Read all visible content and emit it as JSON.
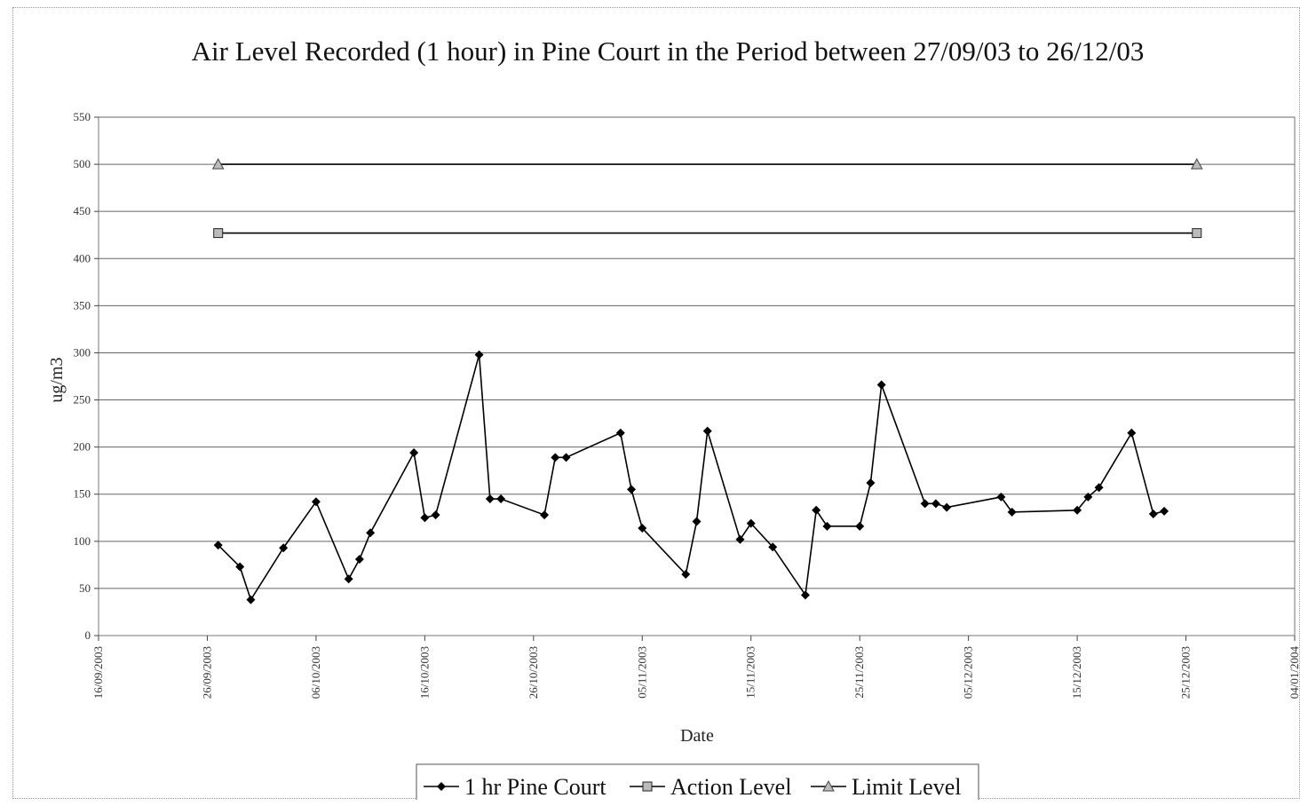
{
  "chart_data": {
    "type": "line",
    "title": "Air Level Recorded (1 hour) in Pine Court in the Period between 27/09/03 to 26/12/03",
    "xlabel": "Date",
    "ylabel": "ug/m3",
    "ylim": [
      0,
      550
    ],
    "yticks": [
      0,
      50,
      100,
      150,
      200,
      250,
      300,
      350,
      400,
      450,
      500,
      550
    ],
    "xlim": [
      "16/09/2003",
      "04/01/2004"
    ],
    "xticks": [
      "16/09/2003",
      "26/09/2003",
      "06/10/2003",
      "16/10/2003",
      "26/10/2003",
      "05/11/2003",
      "15/11/2003",
      "25/11/2003",
      "05/12/2003",
      "15/12/2003",
      "25/12/2003",
      "04/01/2004"
    ],
    "grid": true,
    "legend_position": "bottom",
    "series": [
      {
        "name": "1 hr Pine Court",
        "marker": "diamond",
        "color": "#000000",
        "points": [
          [
            "27/09/2003",
            96
          ],
          [
            "29/09/2003",
            73
          ],
          [
            "30/09/2003",
            38
          ],
          [
            "03/10/2003",
            93
          ],
          [
            "06/10/2003",
            142
          ],
          [
            "09/10/2003",
            60
          ],
          [
            "10/10/2003",
            81
          ],
          [
            "11/10/2003",
            109
          ],
          [
            "15/10/2003",
            194
          ],
          [
            "16/10/2003",
            125
          ],
          [
            "17/10/2003",
            128
          ],
          [
            "21/10/2003",
            298
          ],
          [
            "22/10/2003",
            145
          ],
          [
            "23/10/2003",
            145
          ],
          [
            "27/10/2003",
            128
          ],
          [
            "28/10/2003",
            189
          ],
          [
            "29/10/2003",
            189
          ],
          [
            "03/11/2003",
            215
          ],
          [
            "04/11/2003",
            155
          ],
          [
            "05/11/2003",
            114
          ],
          [
            "09/11/2003",
            65
          ],
          [
            "10/11/2003",
            121
          ],
          [
            "11/11/2003",
            217
          ],
          [
            "14/11/2003",
            102
          ],
          [
            "15/11/2003",
            119
          ],
          [
            "17/11/2003",
            94
          ],
          [
            "20/11/2003",
            43
          ],
          [
            "21/11/2003",
            133
          ],
          [
            "22/11/2003",
            116
          ],
          [
            "25/11/2003",
            116
          ],
          [
            "26/11/2003",
            162
          ],
          [
            "27/11/2003",
            266
          ],
          [
            "01/12/2003",
            140
          ],
          [
            "02/12/2003",
            140
          ],
          [
            "03/12/2003",
            136
          ],
          [
            "08/12/2003",
            147
          ],
          [
            "09/12/2003",
            131
          ],
          [
            "15/12/2003",
            133
          ],
          [
            "16/12/2003",
            147
          ],
          [
            "17/12/2003",
            157
          ],
          [
            "20/12/2003",
            215
          ],
          [
            "22/12/2003",
            129
          ],
          [
            "23/12/2003",
            132
          ]
        ]
      },
      {
        "name": "Action Level",
        "marker": "square",
        "color": "#000000",
        "points": [
          [
            "27/09/2003",
            427
          ],
          [
            "26/12/2003",
            427
          ]
        ]
      },
      {
        "name": "Limit Level",
        "marker": "triangle",
        "color": "#000000",
        "points": [
          [
            "27/09/2003",
            500
          ],
          [
            "26/12/2003",
            500
          ]
        ]
      }
    ]
  }
}
